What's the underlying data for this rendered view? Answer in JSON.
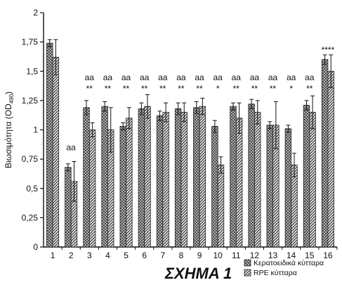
{
  "chart_data": {
    "type": "bar",
    "title": "ΣΧΗΜΑ 1",
    "ylabel": "Βιωσιμότητα (OD",
    "ylabel_sub": "490",
    "ylabel_end": ")",
    "xlabel": "",
    "ylim": [
      0,
      2
    ],
    "yticks": [
      0,
      0.25,
      0.5,
      0.75,
      1,
      1.25,
      1.5,
      1.75,
      2
    ],
    "ytick_labels": [
      "0",
      "0,25",
      "0,5",
      "0,75",
      "1",
      "1,25",
      "1,5",
      "1,75",
      "2"
    ],
    "categories": [
      "1",
      "2",
      "3",
      "4",
      "5",
      "6",
      "7",
      "8",
      "9",
      "10",
      "11",
      "12",
      "13",
      "14",
      "15",
      "16"
    ],
    "series": [
      {
        "name": "Κερατοειδικά κύτταρα",
        "values": [
          1.74,
          0.68,
          1.19,
          1.2,
          1.03,
          1.18,
          1.12,
          1.18,
          1.19,
          1.03,
          1.2,
          1.22,
          1.04,
          1.01,
          1.21,
          1.6
        ],
        "errors": [
          0.03,
          0.03,
          0.06,
          0.04,
          0.03,
          0.05,
          0.04,
          0.05,
          0.05,
          0.05,
          0.03,
          0.04,
          0.03,
          0.03,
          0.04,
          0.04
        ]
      },
      {
        "name": "RPE κύτταρα",
        "values": [
          1.62,
          0.56,
          1.0,
          1.0,
          1.1,
          1.2,
          1.15,
          1.15,
          1.2,
          0.7,
          1.1,
          1.15,
          1.04,
          0.7,
          1.15,
          1.5
        ],
        "errors": [
          0.15,
          0.17,
          0.06,
          0.19,
          0.09,
          0.1,
          0.08,
          0.08,
          0.07,
          0.07,
          0.13,
          0.1,
          0.2,
          0.1,
          0.14,
          0.14
        ]
      }
    ],
    "annotations": [
      {
        "category": "2",
        "lines": [
          "aa"
        ]
      },
      {
        "category": "3",
        "lines": [
          "aa",
          "**"
        ]
      },
      {
        "category": "4",
        "lines": [
          "aa",
          "**"
        ]
      },
      {
        "category": "5",
        "lines": [
          "aa",
          "**"
        ]
      },
      {
        "category": "6",
        "lines": [
          "aa",
          "**"
        ]
      },
      {
        "category": "7",
        "lines": [
          "aa",
          "**"
        ]
      },
      {
        "category": "8",
        "lines": [
          "aa",
          "**"
        ]
      },
      {
        "category": "9",
        "lines": [
          "aa",
          "**"
        ]
      },
      {
        "category": "10",
        "lines": [
          "aa",
          "*"
        ]
      },
      {
        "category": "11",
        "lines": [
          "aa",
          "**"
        ]
      },
      {
        "category": "12",
        "lines": [
          "aa",
          "**"
        ]
      },
      {
        "category": "13",
        "lines": [
          "aa",
          "**"
        ]
      },
      {
        "category": "14",
        "lines": [
          "aa",
          "*"
        ]
      },
      {
        "category": "15",
        "lines": [
          "aa",
          "**"
        ]
      },
      {
        "category": "16",
        "lines": [
          "**",
          "**"
        ]
      }
    ],
    "legend_position": "bottom-right",
    "grid": false
  }
}
